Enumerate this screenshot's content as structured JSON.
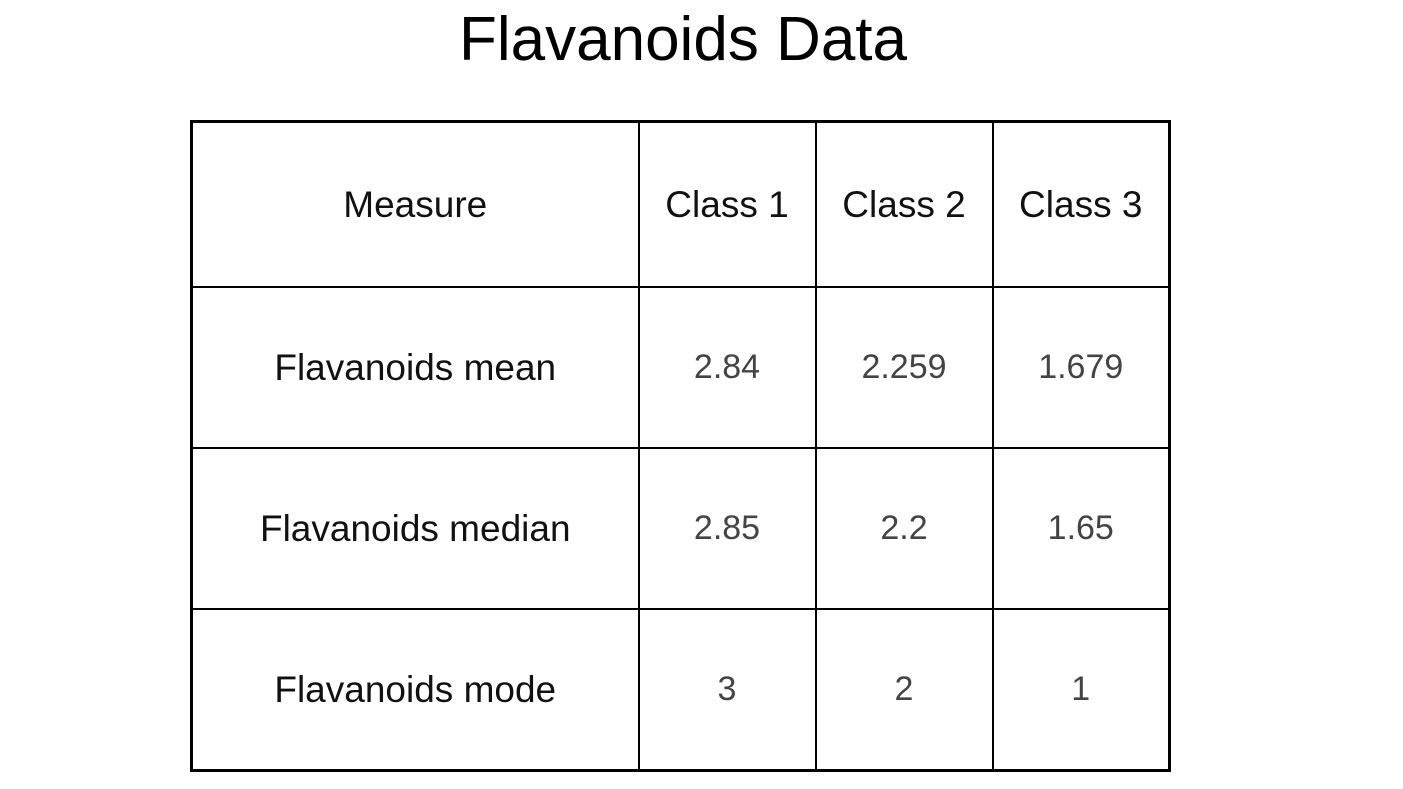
{
  "chart_data": {
    "type": "table",
    "title": "Flavanoids Data",
    "columns": [
      "Measure",
      "Class 1",
      "Class 2",
      "Class 3"
    ],
    "rows": [
      {
        "label": "Flavanoids mean",
        "values": [
          "2.84",
          "2.259",
          "1.679"
        ]
      },
      {
        "label": "Flavanoids median",
        "values": [
          "2.85",
          "2.2",
          "1.65"
        ]
      },
      {
        "label": "Flavanoids mode",
        "values": [
          "3",
          "2",
          "1"
        ]
      }
    ]
  }
}
